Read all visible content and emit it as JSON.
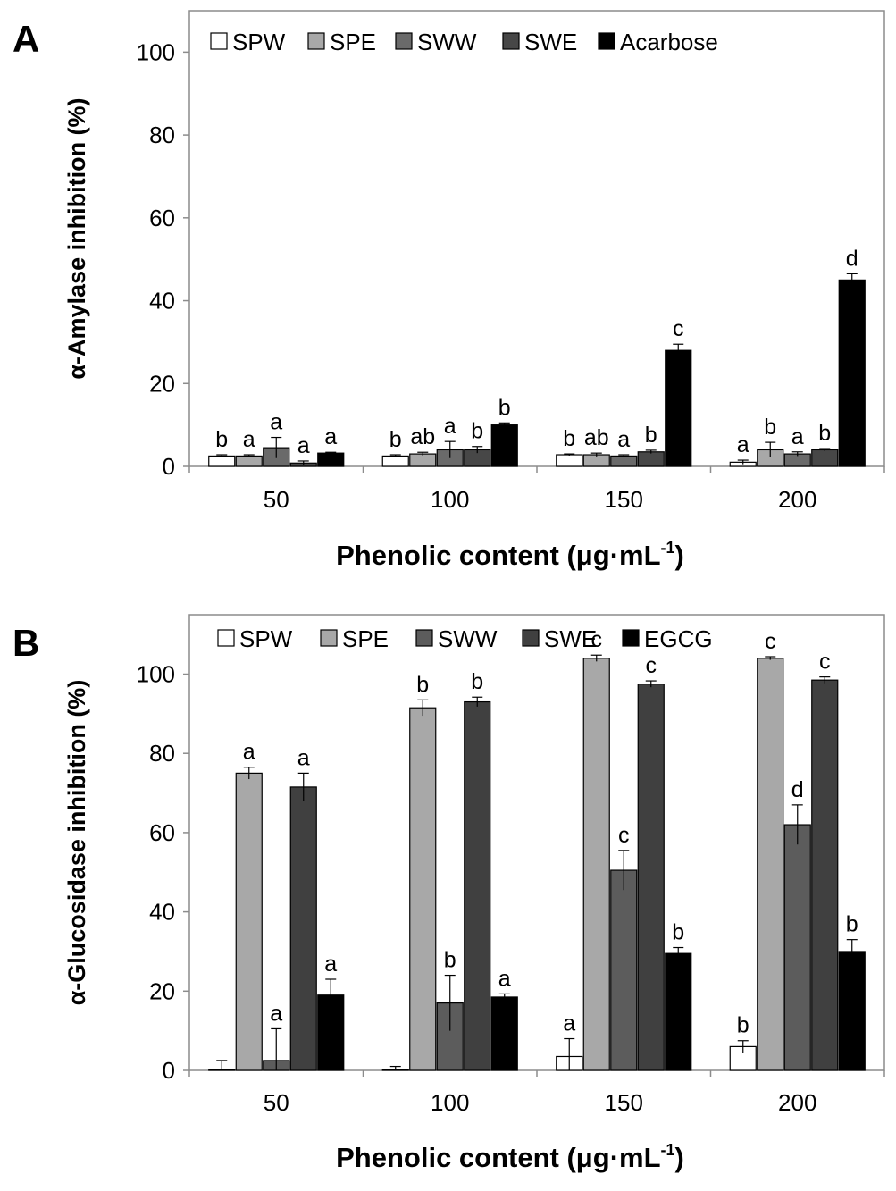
{
  "chart_data": [
    {
      "panel": "A",
      "type": "bar",
      "categories": [
        "50",
        "100",
        "150",
        "200"
      ],
      "xlabel": "Phenolic content (μg·mL",
      "xlabel_sup": "-1",
      "xlabel_end": ")",
      "ylabel": "α-Amylase inhibition (%)",
      "ylim": [
        0,
        110
      ],
      "yticks": [
        "0",
        "20",
        "40",
        "60",
        "80",
        "100"
      ],
      "legend_position": "top",
      "series": [
        {
          "name": "SPW",
          "color": "#ffffff",
          "values": [
            2.5,
            2.5,
            2.8,
            1.0
          ],
          "errors": [
            0.3,
            0.3,
            0.2,
            0.5
          ],
          "letters": [
            "b",
            "b",
            "b",
            "a"
          ]
        },
        {
          "name": "SPE",
          "color": "#a8a8a8",
          "values": [
            2.5,
            3.0,
            2.8,
            4.0
          ],
          "errors": [
            0.3,
            0.4,
            0.4,
            1.8
          ],
          "letters": [
            "a",
            "ab",
            "ab",
            "b"
          ]
        },
        {
          "name": "SWW",
          "color": "#6a6a6a",
          "values": [
            4.5,
            4.0,
            2.5,
            3.0
          ],
          "errors": [
            2.5,
            2.0,
            0.3,
            0.5
          ],
          "letters": [
            "a",
            "a",
            "a",
            "a"
          ]
        },
        {
          "name": "SWE",
          "color": "#474747",
          "values": [
            0.8,
            4.0,
            3.5,
            4.0
          ],
          "errors": [
            0.5,
            0.8,
            0.4,
            0.3
          ],
          "letters": [
            "a",
            "b",
            "b",
            "b"
          ]
        },
        {
          "name": "Acarbose",
          "color": "#000000",
          "values": [
            3.2,
            10.0,
            28.0,
            45.0
          ],
          "errors": [
            0.2,
            0.5,
            1.5,
            1.5
          ],
          "letters": [
            "a",
            "b",
            "c",
            "d"
          ]
        }
      ]
    },
    {
      "panel": "B",
      "type": "bar",
      "categories": [
        "50",
        "100",
        "150",
        "200"
      ],
      "xlabel": "Phenolic content (μg·mL",
      "xlabel_sup": "-1",
      "xlabel_end": ")",
      "ylabel": "α-Glucosidase inhibition (%)",
      "ylim": [
        0,
        115
      ],
      "yticks": [
        "0",
        "20",
        "40",
        "60",
        "80",
        "100"
      ],
      "legend_position": "top",
      "series": [
        {
          "name": "SPW",
          "color": "#ffffff",
          "values": [
            0,
            0,
            3.5,
            6.0
          ],
          "errors": [
            2.5,
            1.0,
            4.5,
            1.5
          ],
          "letters": [
            "",
            "",
            "a",
            "b"
          ]
        },
        {
          "name": "SPE",
          "color": "#a8a8a8",
          "values": [
            75,
            91.5,
            104,
            104
          ],
          "errors": [
            1.5,
            2.0,
            0.8,
            0.4
          ],
          "letters": [
            "a",
            "b",
            "c",
            "c"
          ]
        },
        {
          "name": "SWW",
          "color": "#5c5c5c",
          "values": [
            2.5,
            17.0,
            50.5,
            62.0
          ],
          "errors": [
            8.0,
            7.0,
            5.0,
            5.0
          ],
          "letters": [
            "a",
            "b",
            "c",
            "d"
          ]
        },
        {
          "name": "SWE",
          "color": "#404040",
          "values": [
            71.5,
            93.0,
            97.5,
            98.5
          ],
          "errors": [
            3.5,
            1.2,
            0.8,
            0.8
          ],
          "letters": [
            "a",
            "b",
            "c",
            "c"
          ]
        },
        {
          "name": "EGCG",
          "color": "#000000",
          "values": [
            19.0,
            18.5,
            29.5,
            30.0
          ],
          "errors": [
            4.0,
            0.8,
            1.5,
            3.0
          ],
          "letters": [
            "a",
            "a",
            "b",
            "b"
          ]
        }
      ]
    }
  ]
}
